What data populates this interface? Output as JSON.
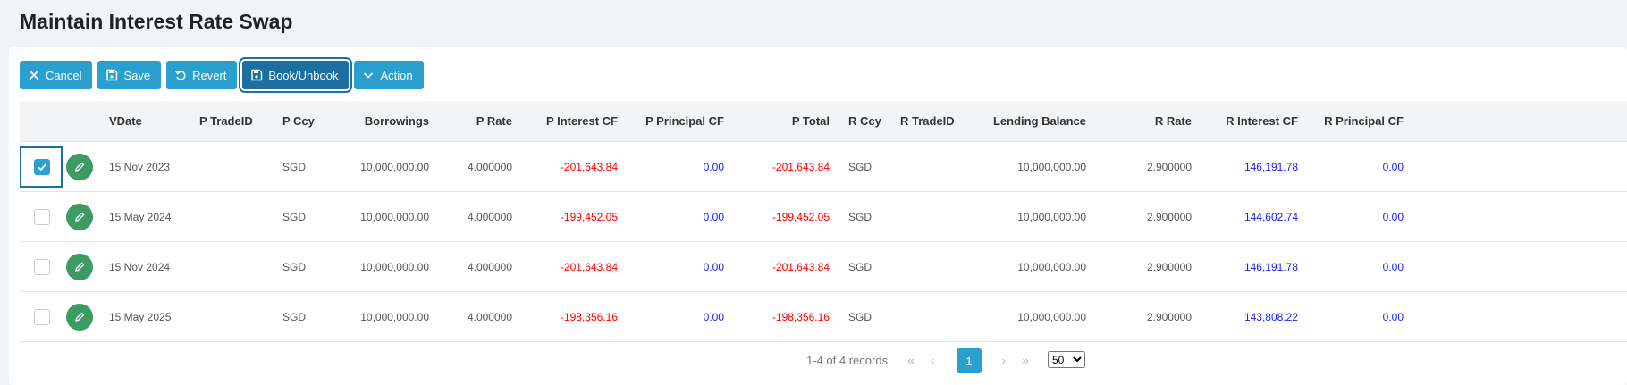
{
  "page": {
    "title": "Maintain Interest Rate Swap"
  },
  "toolbar": {
    "cancel": "Cancel",
    "save": "Save",
    "revert": "Revert",
    "book": "Book/Unbook",
    "action": "Action"
  },
  "columns": {
    "vdate": "VDate",
    "p_tradeid": "P TradeID",
    "p_ccy": "P Ccy",
    "borrowings": "Borrowings",
    "p_rate": "P Rate",
    "p_interest": "P Interest CF",
    "p_principal": "P Principal CF",
    "p_total": "P Total",
    "r_ccy": "R Ccy",
    "r_tradeid": "R TradeID",
    "lending": "Lending Balance",
    "r_rate": "R Rate",
    "r_interest": "R Interest CF",
    "r_principal": "R Principal CF"
  },
  "rows": [
    {
      "checked": true,
      "vdate": "15 Nov 2023",
      "p_tradeid": "",
      "p_ccy": "SGD",
      "borrowings": "10,000,000.00",
      "p_rate": "4.000000",
      "p_interest": "-201,643.84",
      "p_principal": "0.00",
      "p_total": "-201,643.84",
      "r_ccy": "SGD",
      "r_tradeid": "",
      "lending": "10,000,000.00",
      "r_rate": "2.900000",
      "r_interest": "146,191.78",
      "r_principal": "0.00"
    },
    {
      "checked": false,
      "vdate": "15 May 2024",
      "p_tradeid": "",
      "p_ccy": "SGD",
      "borrowings": "10,000,000.00",
      "p_rate": "4.000000",
      "p_interest": "-199,452.05",
      "p_principal": "0.00",
      "p_total": "-199,452.05",
      "r_ccy": "SGD",
      "r_tradeid": "",
      "lending": "10,000,000.00",
      "r_rate": "2.900000",
      "r_interest": "144,602.74",
      "r_principal": "0.00"
    },
    {
      "checked": false,
      "vdate": "15 Nov 2024",
      "p_tradeid": "",
      "p_ccy": "SGD",
      "borrowings": "10,000,000.00",
      "p_rate": "4.000000",
      "p_interest": "-201,643.84",
      "p_principal": "0.00",
      "p_total": "-201,643.84",
      "r_ccy": "SGD",
      "r_tradeid": "",
      "lending": "10,000,000.00",
      "r_rate": "2.900000",
      "r_interest": "146,191.78",
      "r_principal": "0.00"
    },
    {
      "checked": false,
      "vdate": "15 May 2025",
      "p_tradeid": "",
      "p_ccy": "SGD",
      "borrowings": "10,000,000.00",
      "p_rate": "4.000000",
      "p_interest": "-198,356.16",
      "p_principal": "0.00",
      "p_total": "-198,356.16",
      "r_ccy": "SGD",
      "r_tradeid": "",
      "lending": "10,000,000.00",
      "r_rate": "2.900000",
      "r_interest": "143,808.22",
      "r_principal": "0.00"
    }
  ],
  "pager": {
    "records": "1-4 of 4 records",
    "first": "«",
    "prev": "‹",
    "current": "1",
    "next": "›",
    "last": "»",
    "page_size": "50",
    "page_size_options": [
      "50"
    ]
  },
  "colors": {
    "accent": "#2aa0cf",
    "accent_dark": "#1d6fa0",
    "edit": "#3c9a63",
    "negative": "#ff0000",
    "positive": "#1a1aff"
  },
  "icons": {
    "cancel": "close-icon",
    "save": "save-icon",
    "revert": "revert-icon",
    "book": "book-icon",
    "action": "chevron-down-icon",
    "edit": "pencil-icon",
    "check": "check-icon"
  }
}
